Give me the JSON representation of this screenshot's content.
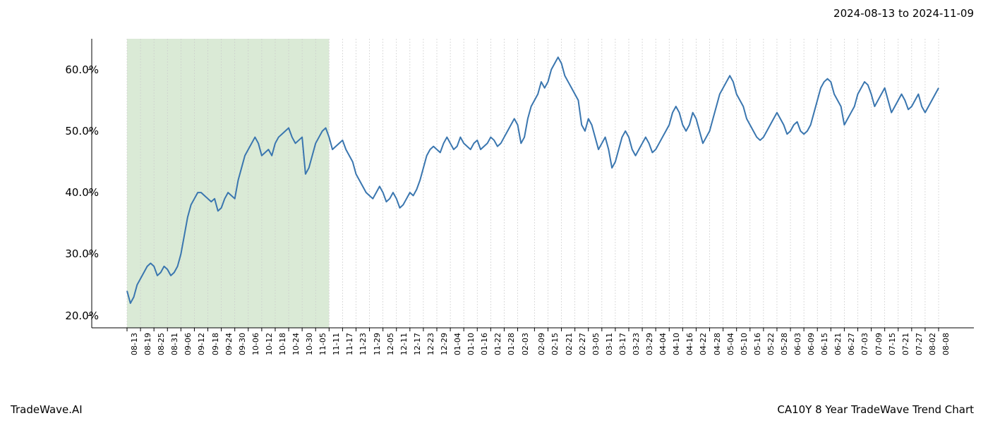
{
  "header": {
    "date_range": "2024-08-13 to 2024-11-09"
  },
  "footer": {
    "brand": "TradeWave.AI",
    "chart_title": "CA10Y 8 Year TradeWave Trend Chart"
  },
  "chart": {
    "type": "line",
    "background_color": "#ffffff",
    "line_color": "#3a76af",
    "line_width": 2.0,
    "highlight_fill": "#d4e6cf",
    "highlight_opacity": 0.85,
    "highlight_range_indices": [
      0,
      15
    ],
    "axis_color": "#000000",
    "grid_color": "#cccccc",
    "grid_dash": "2,2",
    "tick_fontsize_y": 15,
    "tick_fontsize_x": 11,
    "ylim": [
      18,
      65
    ],
    "y_ticks": [
      20,
      30,
      40,
      50,
      60
    ],
    "y_tick_labels": [
      "20.0%",
      "30.0%",
      "40.0%",
      "50.0%",
      "60.0%"
    ],
    "x_labels": [
      "08-13",
      "08-19",
      "08-25",
      "08-31",
      "09-06",
      "09-12",
      "09-18",
      "09-24",
      "09-30",
      "10-06",
      "10-12",
      "10-18",
      "10-24",
      "10-30",
      "11-05",
      "11-11",
      "11-17",
      "11-23",
      "11-29",
      "12-05",
      "12-11",
      "12-17",
      "12-23",
      "12-29",
      "01-04",
      "01-10",
      "01-16",
      "01-22",
      "01-28",
      "02-03",
      "02-09",
      "02-15",
      "02-21",
      "02-27",
      "03-05",
      "03-11",
      "03-17",
      "03-23",
      "03-29",
      "04-04",
      "04-10",
      "04-16",
      "04-22",
      "04-28",
      "05-04",
      "05-10",
      "05-16",
      "05-22",
      "05-28",
      "06-03",
      "06-09",
      "06-15",
      "06-21",
      "06-27",
      "07-03",
      "07-09",
      "07-15",
      "07-21",
      "07-27",
      "08-02",
      "08-08"
    ],
    "series": {
      "values": [
        24,
        22,
        23,
        25,
        26,
        27,
        28,
        28.5,
        28,
        26.5,
        27,
        28,
        27.5,
        26.5,
        27,
        28,
        30,
        33,
        36,
        38,
        39,
        40,
        40,
        39.5,
        39,
        38.5,
        39,
        37,
        37.5,
        39,
        40,
        39.5,
        39,
        42,
        44,
        46,
        47,
        48,
        49,
        48,
        46,
        46.5,
        47,
        46,
        48,
        49,
        49.5,
        50,
        50.5,
        49,
        48,
        48.5,
        49,
        43,
        44,
        46,
        48,
        49,
        50,
        50.5,
        49,
        47,
        47.5,
        48,
        48.5,
        47,
        46,
        45,
        43,
        42,
        41,
        40,
        39.5,
        39,
        40,
        41,
        40,
        38.5,
        39,
        40,
        39,
        37.5,
        38,
        39,
        40,
        39.5,
        40.5,
        42,
        44,
        46,
        47,
        47.5,
        47,
        46.5,
        48,
        49,
        48,
        47,
        47.5,
        49,
        48,
        47.5,
        47,
        48,
        48.5,
        47,
        47.5,
        48,
        49,
        48.5,
        47.5,
        48,
        49,
        50,
        51,
        52,
        51,
        48,
        49,
        52,
        54,
        55,
        56,
        58,
        57,
        58,
        60,
        61,
        62,
        61,
        59,
        58,
        57,
        56,
        55,
        51,
        50,
        52,
        51,
        49,
        47,
        48,
        49,
        47,
        44,
        45,
        47,
        49,
        50,
        49,
        47,
        46,
        47,
        48,
        49,
        48,
        46.5,
        47,
        48,
        49,
        50,
        51,
        53,
        54,
        53,
        51,
        50,
        51,
        53,
        52,
        50,
        48,
        49,
        50,
        52,
        54,
        56,
        57,
        58,
        59,
        58,
        56,
        55,
        54,
        52,
        51,
        50,
        49,
        48.5,
        49,
        50,
        51,
        52,
        53,
        52,
        51,
        49.5,
        50,
        51,
        51.5,
        50,
        49.5,
        50,
        51,
        53,
        55,
        57,
        58,
        58.5,
        58,
        56,
        55,
        54,
        51,
        52,
        53,
        54,
        56,
        57,
        58,
        57.5,
        56,
        54,
        55,
        56,
        57,
        55,
        53,
        54,
        55,
        56,
        55,
        53.5,
        54,
        55,
        56,
        54,
        53,
        54,
        55,
        56,
        57
      ]
    }
  }
}
